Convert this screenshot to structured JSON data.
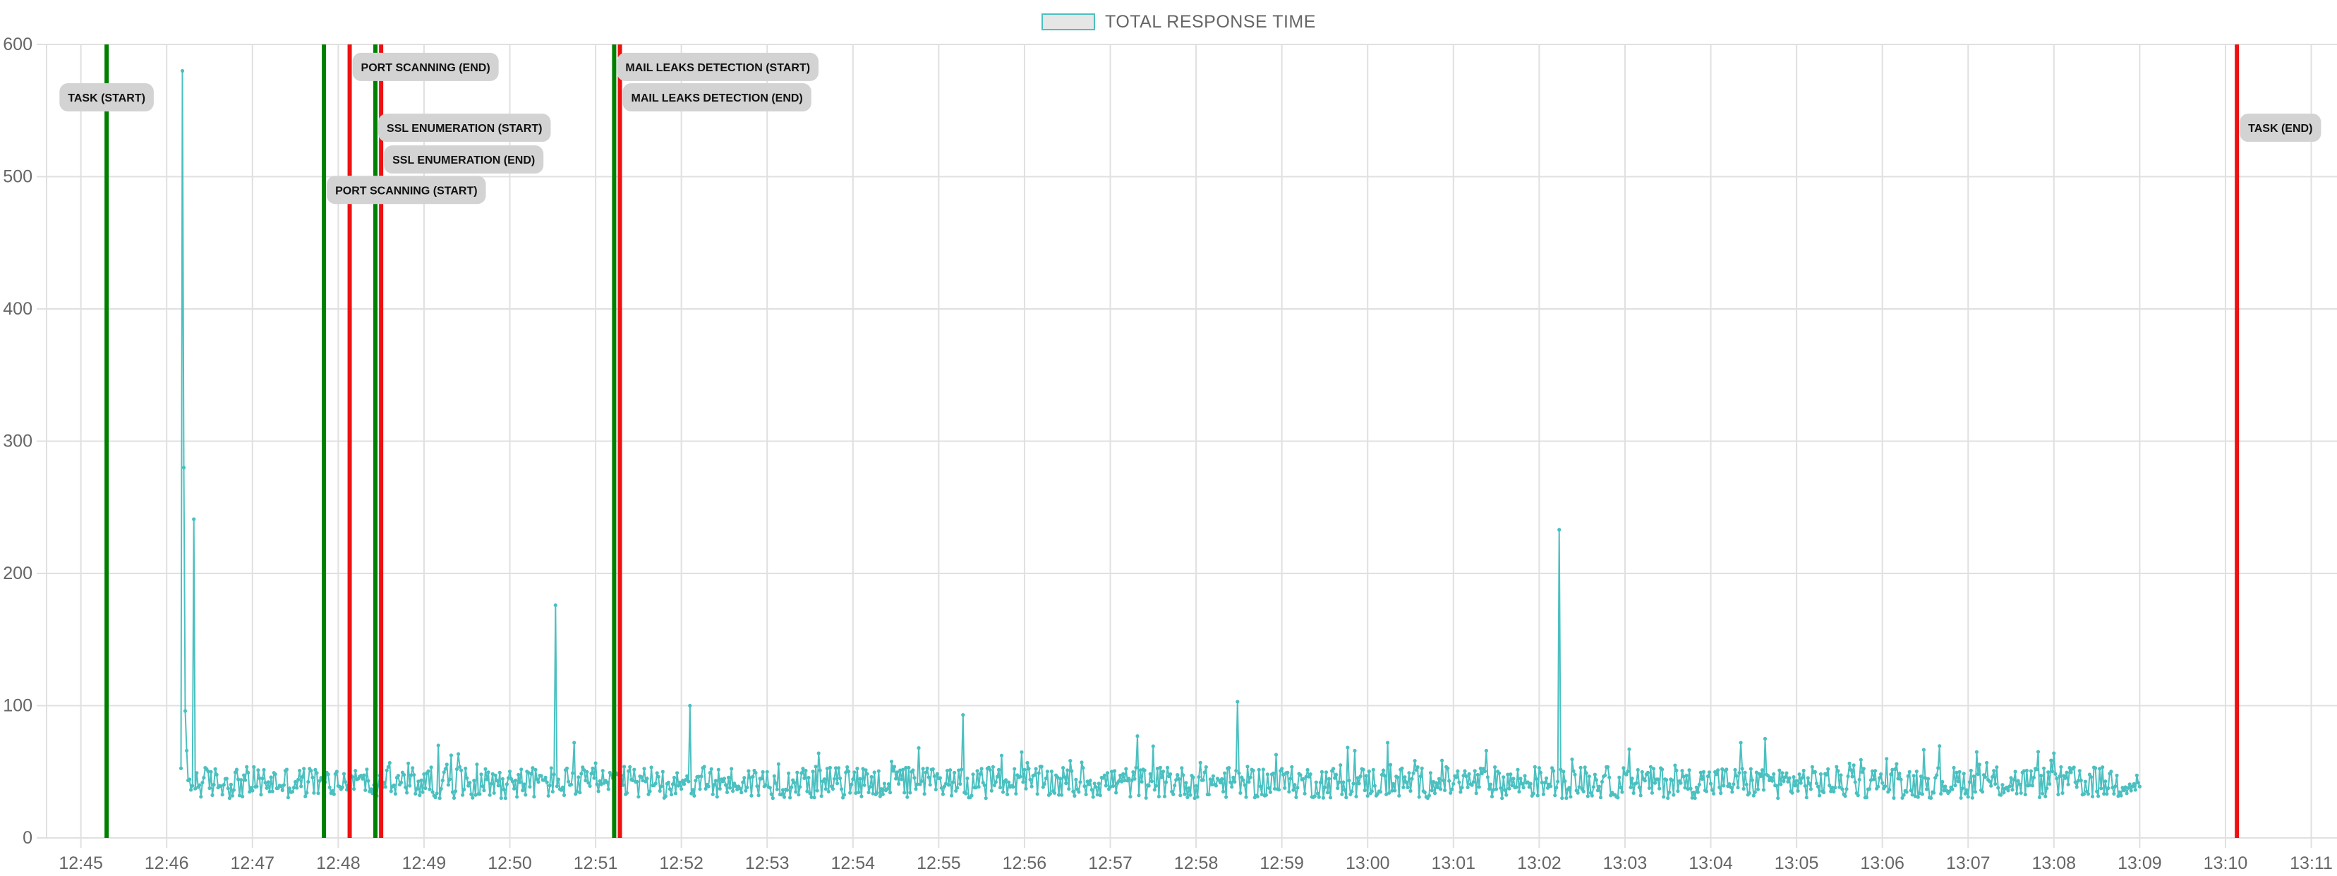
{
  "colors": {
    "series": "#4bc0c0",
    "start_line": "#008000",
    "end_line": "#ee1111",
    "grid": "#e0e0e0",
    "annotation_bg": "#d3d3d3"
  },
  "chart_data": {
    "type": "line",
    "title": "",
    "xlabel": "",
    "ylabel": "",
    "legend": {
      "position": "top-center"
    },
    "grid": true,
    "ylim": [
      0,
      600
    ],
    "y_ticks": [
      "0",
      "100",
      "200",
      "300",
      "400",
      "500",
      "600"
    ],
    "x_range": [
      "12:44:36",
      "13:11:18"
    ],
    "x_ticks": [
      "12:45",
      "12:46",
      "12:47",
      "12:48",
      "12:49",
      "12:50",
      "12:51",
      "12:52",
      "12:53",
      "12:54",
      "12:55",
      "12:56",
      "12:57",
      "12:58",
      "12:59",
      "13:00",
      "13:01",
      "13:02",
      "13:03",
      "13:04",
      "13:05",
      "13:06",
      "13:07",
      "13:08",
      "13:09",
      "13:10",
      "13:11"
    ],
    "series": [
      {
        "name": "TOTAL RESPONSE TIME",
        "x_start": "12:46:10",
        "x_end": "13:09:00",
        "baseline": 42,
        "spikes": [
          {
            "x": "12:46:11",
            "y": 580
          },
          {
            "x": "12:46:12",
            "y": 280
          },
          {
            "x": "12:46:13",
            "y": 96
          },
          {
            "x": "12:46:14",
            "y": 66
          },
          {
            "x": "12:46:19",
            "y": 241
          },
          {
            "x": "12:48:25",
            "y": 40
          },
          {
            "x": "12:49:10",
            "y": 70
          },
          {
            "x": "12:50:32",
            "y": 176
          },
          {
            "x": "12:50:45",
            "y": 72
          },
          {
            "x": "12:52:06",
            "y": 100
          },
          {
            "x": "12:54:46",
            "y": 68
          },
          {
            "x": "12:55:17",
            "y": 93
          },
          {
            "x": "12:57:19",
            "y": 77
          },
          {
            "x": "12:58:29",
            "y": 103
          },
          {
            "x": "13:00:14",
            "y": 72
          },
          {
            "x": "13:02:14",
            "y": 233
          },
          {
            "x": "13:04:21",
            "y": 72
          },
          {
            "x": "13:04:38",
            "y": 75
          },
          {
            "x": "13:07:06",
            "y": 65
          },
          {
            "x": "13:08:00",
            "y": 64
          }
        ]
      }
    ],
    "annotations": [
      {
        "label": "TASK (START)",
        "x": "12:45:18",
        "kind": "start",
        "label_y": 560,
        "side": "left"
      },
      {
        "label": "PORT SCANNING (START)",
        "x": "12:47:50",
        "kind": "start",
        "label_y": 490,
        "side": "right"
      },
      {
        "label": "PORT SCANNING (END)",
        "x": "12:48:08",
        "kind": "end",
        "label_y": 583,
        "side": "right"
      },
      {
        "label": "SSL ENUMERATION (START)",
        "x": "12:48:26",
        "kind": "start",
        "label_y": 537,
        "side": "right"
      },
      {
        "label": "SSL ENUMERATION (END)",
        "x": "12:48:30",
        "kind": "end",
        "label_y": 513,
        "side": "right"
      },
      {
        "label": "MAIL LEAKS DETECTION (START)",
        "x": "12:51:13",
        "kind": "start",
        "label_y": 583,
        "side": "right"
      },
      {
        "label": "MAIL LEAKS DETECTION (END)",
        "x": "12:51:17",
        "kind": "end",
        "label_y": 560,
        "side": "right"
      },
      {
        "label": "TASK (END)",
        "x": "13:10:08",
        "kind": "end",
        "label_y": 537,
        "side": "right"
      }
    ]
  }
}
